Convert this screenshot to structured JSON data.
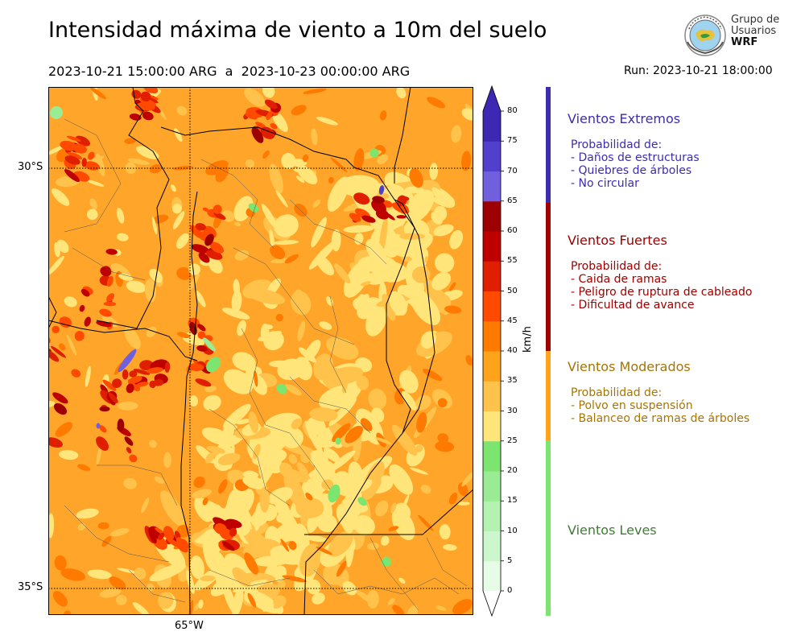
{
  "header": {
    "title": "Intensidad máxima de viento a 10m del suelo",
    "period_start": "2023-10-21 15:00:00 ARG",
    "period_sep": "a",
    "period_end": "2023-10-23 00:00:00 ARG",
    "run": "Run: 2023-10-21 18:00:00"
  },
  "logo": {
    "line1": "Grupo de",
    "line2": "Usuarios",
    "line3": "WRF",
    "icon": "globe-logo-icon"
  },
  "map": {
    "lat_labels": [
      "30°S",
      "35°S"
    ],
    "lon_labels": [
      "65°W"
    ]
  },
  "colorbar": {
    "unit": "km/h",
    "ticks": [
      "0",
      "5",
      "10",
      "15",
      "20",
      "25",
      "30",
      "35",
      "40",
      "45",
      "50",
      "55",
      "60",
      "65",
      "70",
      "75",
      "80"
    ],
    "colors": [
      "#e6fce6",
      "#ccf7cc",
      "#b3f2b0",
      "#99ec94",
      "#7ce56f",
      "#ffe57a",
      "#ffc24a",
      "#ffa31a",
      "#ff7a00",
      "#ff4a00",
      "#e01e00",
      "#bf0000",
      "#9c0000",
      "#7060dd",
      "#5040cc",
      "#3c28b2"
    ]
  },
  "categories": [
    {
      "title": "Vientos Extremos",
      "color": "#3d2cb0",
      "bar_color": "#3d2cb0",
      "lines": [
        "Probabilidad de:",
        "- Daños de estructuras",
        "- Quiebres de árboles",
        "- No circular"
      ]
    },
    {
      "title": "Vientos Fuertes",
      "color": "#a00000",
      "bar_color": "#a00000",
      "lines": [
        "Probabilidad de:",
        "- Caida de ramas",
        "- Peligro de ruptura de cableado",
        "- Dificultad de avance"
      ]
    },
    {
      "title": "Vientos Moderados",
      "color": "#a87400",
      "bar_color": "#ffa31a",
      "lines": [
        "Probabilidad de:",
        "- Polvo en suspensión",
        "- Balanceo de ramas de árboles"
      ]
    },
    {
      "title": "Vientos Leves",
      "color": "#3e7d34",
      "bar_color": "#7ce56f",
      "lines": []
    }
  ]
}
